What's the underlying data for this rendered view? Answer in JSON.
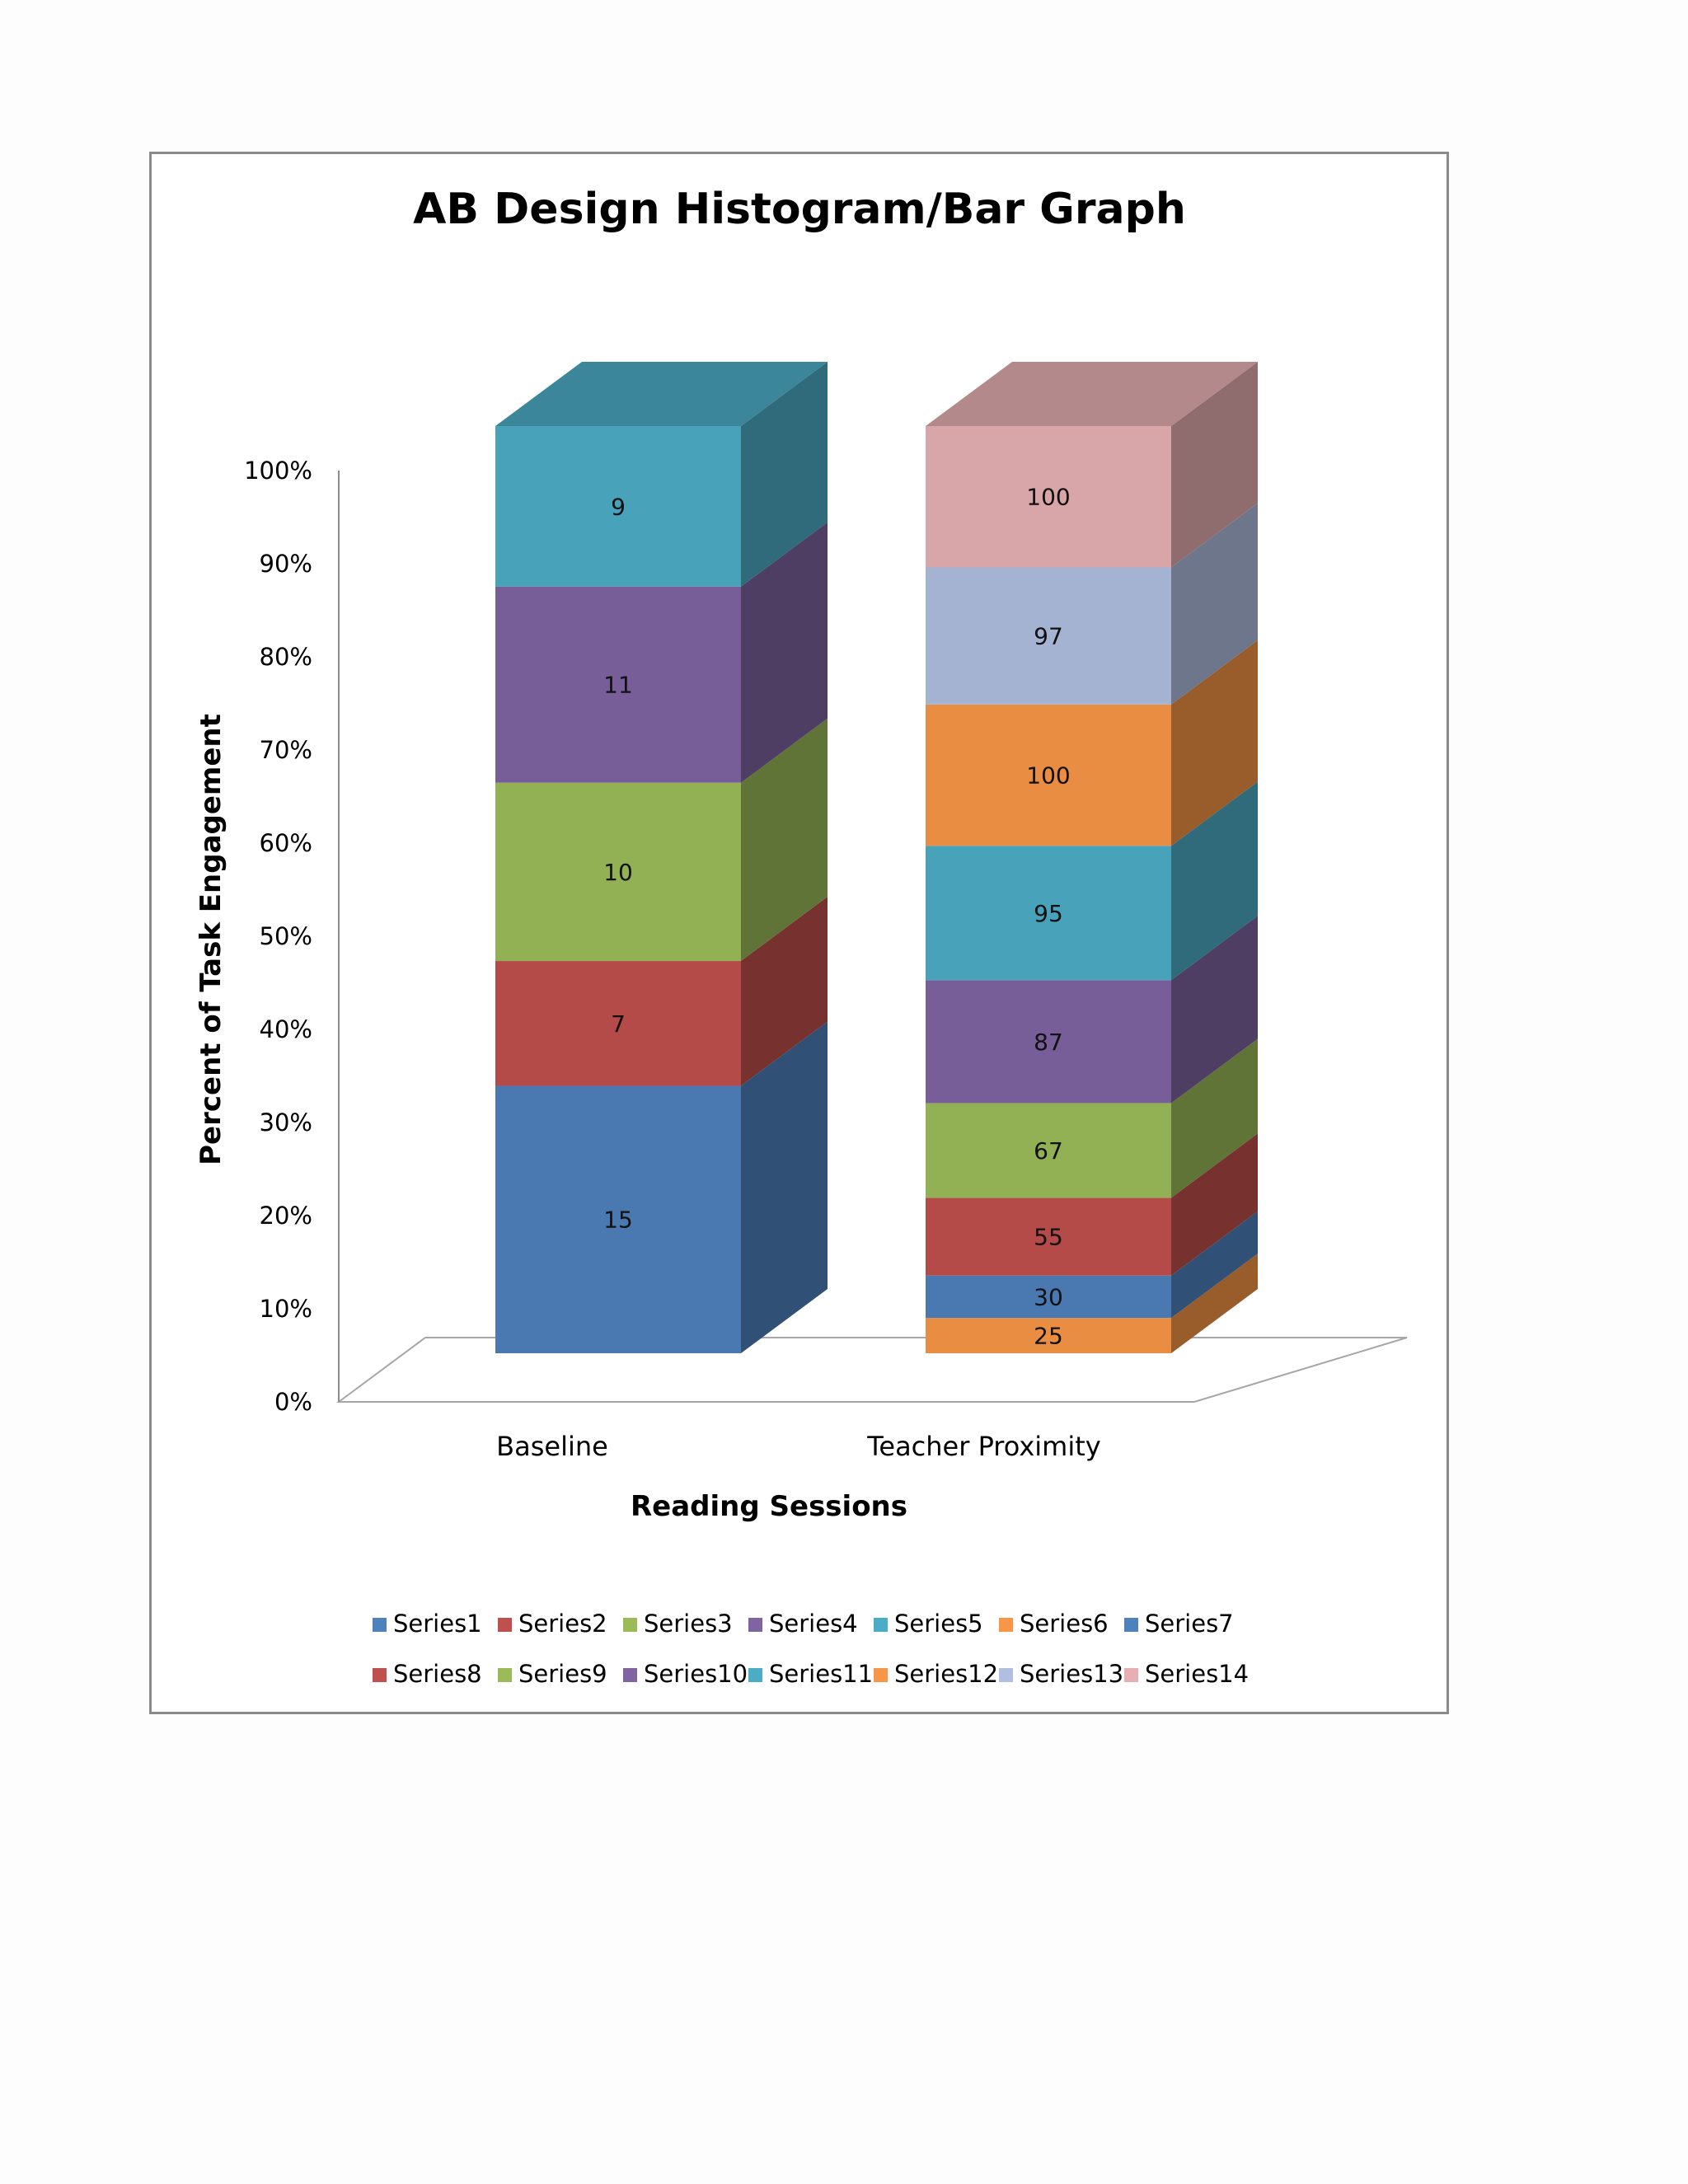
{
  "chart_data": {
    "type": "bar",
    "subtype": "3d-stacked-100-percent",
    "title": "AB Design Histogram/Bar Graph",
    "xlabel": "Reading Sessions",
    "ylabel": "Percent of Task Engagement",
    "categories": [
      "Baseline",
      "Teacher Proximity"
    ],
    "yticks": [
      "0%",
      "10%",
      "20%",
      "30%",
      "40%",
      "50%",
      "60%",
      "70%",
      "80%",
      "90%",
      "100%"
    ],
    "ylim": [
      0,
      100
    ],
    "legend_position": "bottom",
    "series": [
      {
        "name": "Series1",
        "color": "#4f81bd",
        "values": [
          15,
          null
        ]
      },
      {
        "name": "Series2",
        "color": "#c0504d",
        "values": [
          7,
          null
        ]
      },
      {
        "name": "Series3",
        "color": "#9bbb59",
        "values": [
          10,
          null
        ]
      },
      {
        "name": "Series4",
        "color": "#8064a2",
        "values": [
          11,
          null
        ]
      },
      {
        "name": "Series5",
        "color": "#4bacc6",
        "values": [
          9,
          null
        ]
      },
      {
        "name": "Series6",
        "color": "#f79646",
        "values": [
          null,
          25
        ]
      },
      {
        "name": "Series7",
        "color": "#4f81bd",
        "values": [
          null,
          30
        ]
      },
      {
        "name": "Series8",
        "color": "#c0504d",
        "values": [
          null,
          55
        ]
      },
      {
        "name": "Series9",
        "color": "#9bbb59",
        "values": [
          null,
          67
        ]
      },
      {
        "name": "Series10",
        "color": "#8064a2",
        "values": [
          null,
          87
        ]
      },
      {
        "name": "Series11",
        "color": "#4bacc6",
        "values": [
          null,
          95
        ]
      },
      {
        "name": "Series12",
        "color": "#f79646",
        "values": [
          null,
          100
        ]
      },
      {
        "name": "Series13",
        "color": "#b0bedf",
        "values": [
          null,
          97
        ]
      },
      {
        "name": "Series14",
        "color": "#e6b0b3",
        "values": [
          null,
          100
        ]
      }
    ]
  }
}
